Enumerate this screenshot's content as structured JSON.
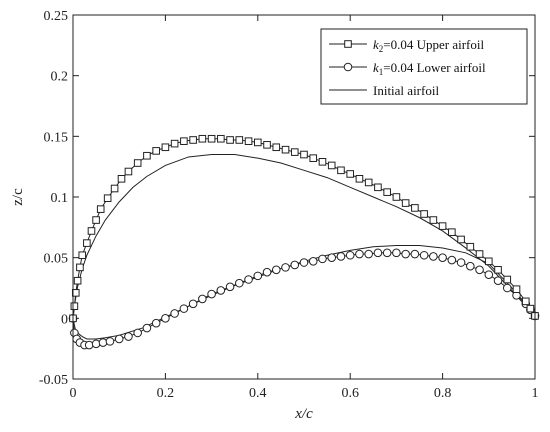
{
  "chart_data": {
    "type": "line",
    "xlabel": "x/c",
    "ylabel": "z/c",
    "xlim": [
      0,
      1
    ],
    "ylim": [
      -0.05,
      0.25
    ],
    "x_ticks": [
      0,
      0.2,
      0.4,
      0.6,
      0.8,
      1
    ],
    "x_tick_labels": [
      "0",
      "0.2",
      "0.4",
      "0.6",
      "0.8",
      "1"
    ],
    "y_ticks": [
      -0.05,
      0,
      0.05,
      0.1,
      0.15,
      0.2,
      0.25
    ],
    "y_tick_labels": [
      "-0.05",
      "0",
      "0.05",
      "0.1",
      "0.15",
      "0.2",
      "0.25"
    ],
    "grid": false,
    "legend_position": "top-right",
    "series": [
      {
        "name": "k2=0.04 Upper airfoil",
        "legend_var": "k",
        "legend_sub": "2",
        "legend_rest": "=0.04 Upper airfoil",
        "marker": "square",
        "color": "#222222",
        "points": [
          [
            0,
            0
          ],
          [
            0.003,
            0.01
          ],
          [
            0.006,
            0.021
          ],
          [
            0.01,
            0.031
          ],
          [
            0.015,
            0.042
          ],
          [
            0.02,
            0.052
          ],
          [
            0.03,
            0.062
          ],
          [
            0.04,
            0.072
          ],
          [
            0.05,
            0.081
          ],
          [
            0.06,
            0.09
          ],
          [
            0.075,
            0.099
          ],
          [
            0.09,
            0.107
          ],
          [
            0.105,
            0.115
          ],
          [
            0.12,
            0.121
          ],
          [
            0.14,
            0.128
          ],
          [
            0.16,
            0.134
          ],
          [
            0.18,
            0.138
          ],
          [
            0.2,
            0.141
          ],
          [
            0.22,
            0.144
          ],
          [
            0.24,
            0.146
          ],
          [
            0.26,
            0.147
          ],
          [
            0.28,
            0.148
          ],
          [
            0.3,
            0.148
          ],
          [
            0.32,
            0.148
          ],
          [
            0.34,
            0.147
          ],
          [
            0.36,
            0.147
          ],
          [
            0.38,
            0.146
          ],
          [
            0.4,
            0.145
          ],
          [
            0.42,
            0.143
          ],
          [
            0.44,
            0.141
          ],
          [
            0.46,
            0.139
          ],
          [
            0.48,
            0.137
          ],
          [
            0.5,
            0.135
          ],
          [
            0.52,
            0.132
          ],
          [
            0.54,
            0.129
          ],
          [
            0.56,
            0.126
          ],
          [
            0.58,
            0.122
          ],
          [
            0.6,
            0.119
          ],
          [
            0.62,
            0.115
          ],
          [
            0.64,
            0.112
          ],
          [
            0.66,
            0.108
          ],
          [
            0.68,
            0.104
          ],
          [
            0.7,
            0.1
          ],
          [
            0.72,
            0.095
          ],
          [
            0.74,
            0.091
          ],
          [
            0.76,
            0.086
          ],
          [
            0.78,
            0.081
          ],
          [
            0.8,
            0.076
          ],
          [
            0.82,
            0.071
          ],
          [
            0.84,
            0.065
          ],
          [
            0.86,
            0.059
          ],
          [
            0.88,
            0.053
          ],
          [
            0.9,
            0.047
          ],
          [
            0.92,
            0.04
          ],
          [
            0.94,
            0.032
          ],
          [
            0.96,
            0.024
          ],
          [
            0.98,
            0.014
          ],
          [
            0.99,
            0.008
          ],
          [
            1,
            0.002
          ]
        ]
      },
      {
        "name": "k1=0.04 Lower airfoil",
        "legend_var": "k",
        "legend_sub": "1",
        "legend_rest": "=0.04 Lower airfoil",
        "marker": "circle",
        "color": "#222222",
        "points": [
          [
            0,
            0
          ],
          [
            0.003,
            -0.012
          ],
          [
            0.008,
            -0.017
          ],
          [
            0.015,
            -0.02
          ],
          [
            0.025,
            -0.022
          ],
          [
            0.035,
            -0.022
          ],
          [
            0.05,
            -0.021
          ],
          [
            0.065,
            -0.02
          ],
          [
            0.08,
            -0.019
          ],
          [
            0.1,
            -0.017
          ],
          [
            0.12,
            -0.015
          ],
          [
            0.14,
            -0.012
          ],
          [
            0.16,
            -0.008
          ],
          [
            0.18,
            -0.004
          ],
          [
            0.2,
            0
          ],
          [
            0.22,
            0.004
          ],
          [
            0.24,
            0.008
          ],
          [
            0.26,
            0.012
          ],
          [
            0.28,
            0.016
          ],
          [
            0.3,
            0.02
          ],
          [
            0.32,
            0.023
          ],
          [
            0.34,
            0.026
          ],
          [
            0.36,
            0.029
          ],
          [
            0.38,
            0.032
          ],
          [
            0.4,
            0.035
          ],
          [
            0.42,
            0.038
          ],
          [
            0.44,
            0.04
          ],
          [
            0.46,
            0.042
          ],
          [
            0.48,
            0.044
          ],
          [
            0.5,
            0.046
          ],
          [
            0.52,
            0.047
          ],
          [
            0.54,
            0.049
          ],
          [
            0.56,
            0.05
          ],
          [
            0.58,
            0.051
          ],
          [
            0.6,
            0.052
          ],
          [
            0.62,
            0.053
          ],
          [
            0.64,
            0.053
          ],
          [
            0.66,
            0.054
          ],
          [
            0.68,
            0.054
          ],
          [
            0.7,
            0.054
          ],
          [
            0.72,
            0.053
          ],
          [
            0.74,
            0.053
          ],
          [
            0.76,
            0.052
          ],
          [
            0.78,
            0.051
          ],
          [
            0.8,
            0.05
          ],
          [
            0.82,
            0.048
          ],
          [
            0.84,
            0.046
          ],
          [
            0.86,
            0.043
          ],
          [
            0.88,
            0.04
          ],
          [
            0.9,
            0.036
          ],
          [
            0.92,
            0.031
          ],
          [
            0.94,
            0.025
          ],
          [
            0.96,
            0.019
          ],
          [
            0.98,
            0.012
          ],
          [
            0.99,
            0.007
          ],
          [
            1,
            0.002
          ]
        ]
      },
      {
        "name": "Initial airfoil",
        "legend_var": "",
        "legend_sub": "",
        "legend_rest": "Initial airfoil",
        "marker": "none",
        "color": "#222222",
        "points": [
          [
            0,
            0
          ],
          [
            0.005,
            0.015
          ],
          [
            0.01,
            0.026
          ],
          [
            0.02,
            0.041
          ],
          [
            0.03,
            0.052
          ],
          [
            0.05,
            0.068
          ],
          [
            0.07,
            0.081
          ],
          [
            0.1,
            0.096
          ],
          [
            0.13,
            0.108
          ],
          [
            0.16,
            0.117
          ],
          [
            0.2,
            0.126
          ],
          [
            0.25,
            0.133
          ],
          [
            0.3,
            0.135
          ],
          [
            0.35,
            0.135
          ],
          [
            0.4,
            0.132
          ],
          [
            0.45,
            0.128
          ],
          [
            0.5,
            0.122
          ],
          [
            0.55,
            0.116
          ],
          [
            0.6,
            0.108
          ],
          [
            0.65,
            0.1
          ],
          [
            0.7,
            0.092
          ],
          [
            0.75,
            0.083
          ],
          [
            0.8,
            0.072
          ],
          [
            0.85,
            0.058
          ],
          [
            0.9,
            0.043
          ],
          [
            0.95,
            0.023
          ],
          [
            0.98,
            0.01
          ],
          [
            1,
            0.001
          ],
          [
            0.98,
            0.012
          ],
          [
            0.95,
            0.025
          ],
          [
            0.92,
            0.037
          ],
          [
            0.9,
            0.045
          ],
          [
            0.85,
            0.054
          ],
          [
            0.8,
            0.058
          ],
          [
            0.75,
            0.06
          ],
          [
            0.7,
            0.06
          ],
          [
            0.65,
            0.059
          ],
          [
            0.6,
            0.056
          ],
          [
            0.55,
            0.052
          ],
          [
            0.5,
            0.047
          ],
          [
            0.45,
            0.041
          ],
          [
            0.4,
            0.034
          ],
          [
            0.35,
            0.027
          ],
          [
            0.3,
            0.019
          ],
          [
            0.25,
            0.01
          ],
          [
            0.2,
            0.001
          ],
          [
            0.15,
            -0.008
          ],
          [
            0.1,
            -0.014
          ],
          [
            0.07,
            -0.016
          ],
          [
            0.05,
            -0.017
          ],
          [
            0.03,
            -0.017
          ],
          [
            0.02,
            -0.015
          ],
          [
            0.01,
            -0.012
          ],
          [
            0.005,
            -0.009
          ],
          [
            0,
            0
          ]
        ]
      }
    ]
  }
}
